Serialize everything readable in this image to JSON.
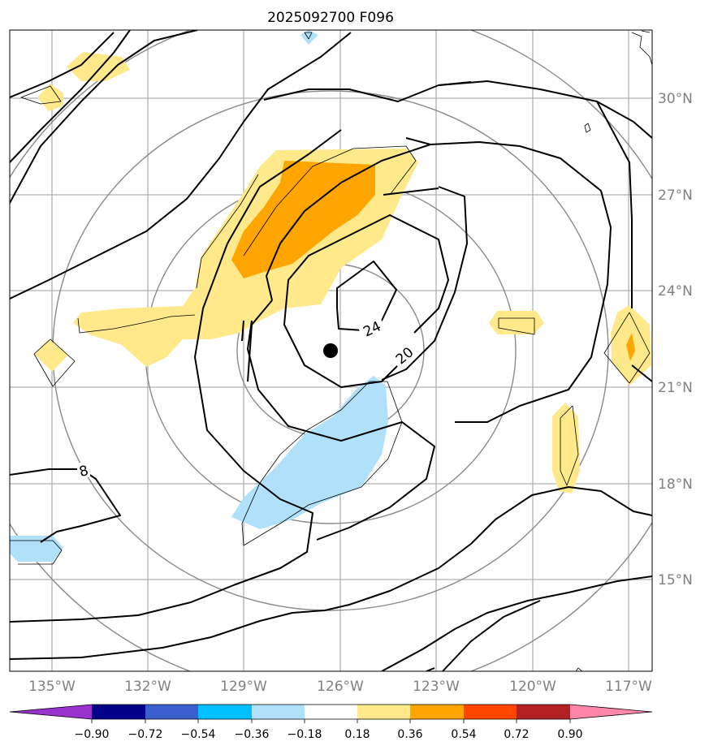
{
  "title": "2025092700 F096",
  "lat_labels": [
    "30°N",
    "27°N",
    "24°N",
    "21°N",
    "18°N",
    "15°N"
  ],
  "lon_labels": [
    "135°W",
    "132°W",
    "129°W",
    "126°W",
    "123°W",
    "120°W",
    "117°W"
  ],
  "contour_labels": [
    "24",
    "20",
    "8"
  ],
  "colorbar": {
    "tick_labels": [
      "−0.90",
      "−0.72",
      "−0.54",
      "−0.36",
      "−0.18",
      "0.18",
      "0.36",
      "0.54",
      "0.72",
      "0.90"
    ],
    "colors": [
      "#9932cc",
      "#00008b",
      "#3a5fcd",
      "#00bfff",
      "#b0e0fa",
      "#ffffff",
      "#ffe98a",
      "#ffa500",
      "#ff4500",
      "#b22222",
      "#ff88aa"
    ]
  },
  "shading_colors": {
    "light_yellow": "#ffe98a",
    "orange": "#ffa500",
    "red": "#ff4500",
    "light_blue": "#b0e0fa"
  },
  "storm_center_marker": "black-dot"
}
